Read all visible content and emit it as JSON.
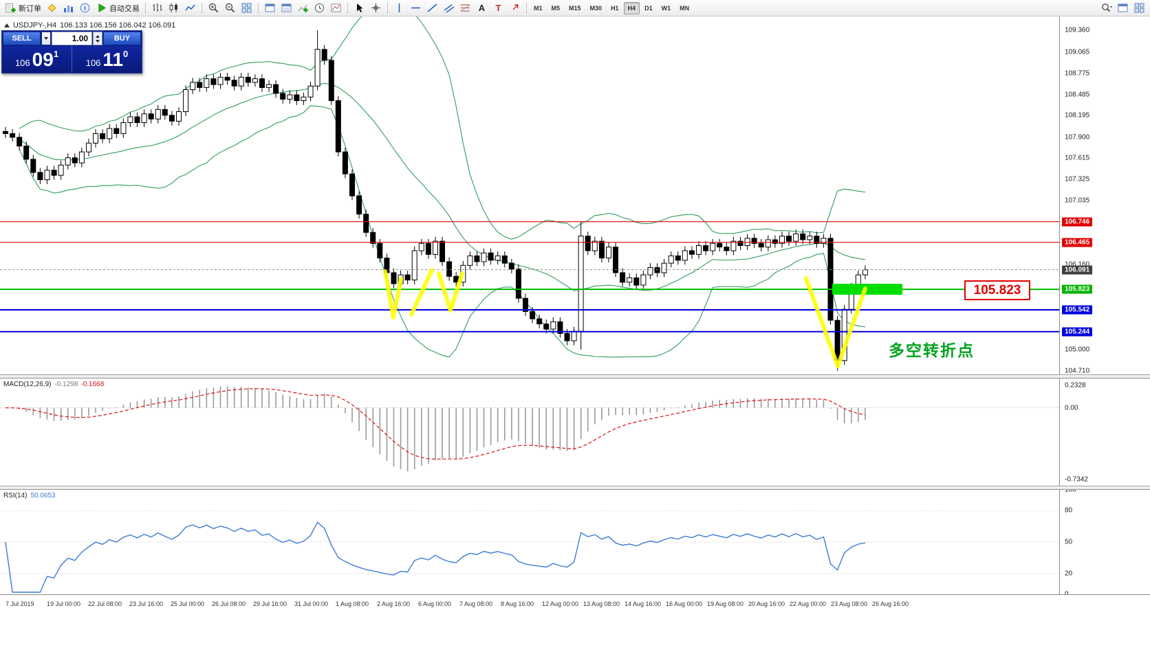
{
  "toolbar": {
    "items": [
      {
        "name": "new-order",
        "icon": "neworder",
        "label": "新订单"
      },
      {
        "name": "favorites",
        "icon": "diamond"
      },
      {
        "name": "charts-profile",
        "icon": "profiles"
      },
      {
        "name": "data-window",
        "icon": "info"
      },
      {
        "name": "autotrading",
        "icon": "play",
        "label": "自动交易"
      },
      {
        "sep": true
      },
      {
        "name": "bars-chart",
        "icon": "bars"
      },
      {
        "name": "candle-chart",
        "icon": "candles"
      },
      {
        "name": "line-chart",
        "icon": "linechart"
      },
      {
        "sep": true
      },
      {
        "name": "zoom-in",
        "icon": "zoomin"
      },
      {
        "name": "zoom-out",
        "icon": "zoomout"
      },
      {
        "name": "tile-windows",
        "icon": "tile"
      },
      {
        "sep": true
      },
      {
        "name": "new-chart",
        "icon": "window"
      },
      {
        "name": "chart-list",
        "icon": "windowlist"
      },
      {
        "name": "indicators",
        "icon": "indicator"
      },
      {
        "name": "periods",
        "icon": "clock"
      },
      {
        "name": "templates",
        "icon": "template"
      },
      {
        "sep": true
      },
      {
        "name": "cursor",
        "icon": "cursor"
      },
      {
        "name": "crosshair",
        "icon": "crosshair"
      },
      {
        "sep": true
      },
      {
        "name": "vertical-line",
        "icon": "vline"
      },
      {
        "name": "horizontal-line",
        "icon": "hline"
      },
      {
        "name": "trendline",
        "icon": "tline"
      },
      {
        "name": "equidistant-channel",
        "icon": "channel"
      },
      {
        "name": "fibonacci",
        "icon": "fibo"
      },
      {
        "name": "text",
        "icon": "textA"
      },
      {
        "name": "text-label",
        "icon": "labelT"
      },
      {
        "name": "arrow-objects",
        "icon": "arrowobj"
      },
      {
        "sep": true
      }
    ],
    "timeframes": [
      "M1",
      "M5",
      "M15",
      "M30",
      "H1",
      "H4",
      "D1",
      "W1",
      "MN"
    ],
    "active_timeframe": "H4",
    "right_items": [
      {
        "name": "search-symbol",
        "icon": "search"
      },
      {
        "name": "restore-window",
        "icon": "window"
      },
      {
        "name": "arrange-windows",
        "icon": "tile"
      }
    ]
  },
  "trade_panel": {
    "sell_label": "SELL",
    "buy_label": "BUY",
    "volume": "1.00",
    "sell_price": {
      "small": "106",
      "big": "09",
      "sup": "1"
    },
    "buy_price": {
      "small": "106",
      "big": "11",
      "sup": "0"
    }
  },
  "header": {
    "symbol": "USDJPY-,H4",
    "ohlc": "106.133 106.156 106.042 106.091"
  },
  "chart_data": {
    "type": "candlestick",
    "symbol": "USDJPY",
    "timeframe": "H4",
    "ohlc_current": {
      "open": "106.133",
      "high": "106.156",
      "low": "106.042",
      "close": "106.091"
    },
    "ylim": [
      104.66,
      109.55
    ],
    "first_open": 107.98,
    "closes": [
      107.95,
      107.9,
      107.78,
      107.6,
      107.42,
      107.32,
      107.45,
      107.38,
      107.52,
      107.62,
      107.55,
      107.7,
      107.82,
      107.95,
      107.88,
      108.02,
      107.95,
      108.1,
      108.18,
      108.1,
      108.22,
      108.15,
      108.28,
      108.2,
      108.12,
      108.25,
      108.55,
      108.65,
      108.58,
      108.7,
      108.62,
      108.72,
      108.68,
      108.6,
      108.72,
      108.65,
      108.7,
      108.58,
      108.62,
      108.5,
      108.42,
      108.48,
      108.4,
      108.45,
      108.6,
      109.1,
      108.95,
      108.4,
      107.7,
      107.4,
      107.1,
      106.85,
      106.6,
      106.45,
      106.25,
      106.05,
      105.9,
      106.02,
      105.95,
      106.35,
      106.45,
      106.3,
      106.48,
      106.2,
      106.0,
      105.92,
      106.15,
      106.28,
      106.2,
      106.32,
      106.22,
      106.28,
      106.18,
      106.1,
      105.7,
      105.52,
      105.42,
      105.35,
      105.28,
      105.38,
      105.22,
      105.12,
      105.25,
      106.55,
      106.35,
      106.48,
      106.25,
      106.4,
      106.05,
      105.92,
      105.98,
      105.88,
      106.02,
      106.12,
      106.05,
      106.18,
      106.28,
      106.22,
      106.35,
      106.3,
      106.42,
      106.35,
      106.45,
      106.4,
      106.35,
      106.48,
      106.42,
      106.52,
      106.45,
      106.4,
      106.5,
      106.45,
      106.55,
      106.48,
      106.58,
      106.5,
      106.55,
      106.45,
      106.52,
      105.4,
      104.85,
      105.55,
      105.85,
      106.02,
      106.09
    ],
    "wick_overrides": {
      "45": {
        "h": 109.36
      },
      "83": {
        "h": 106.75,
        "l": 105.0
      },
      "120": {
        "l": 104.71
      }
    },
    "bollinger": {
      "period": 20,
      "deviation": 2
    },
    "hlines": [
      {
        "value": 106.746,
        "color": "#e00000",
        "width": 1.2
      },
      {
        "value": 106.465,
        "color": "#e00000",
        "width": 1.2
      },
      {
        "value": 105.823,
        "color": "#00bb00",
        "width": 2
      },
      {
        "value": 105.542,
        "color": "#0000e0",
        "width": 2
      },
      {
        "value": 105.244,
        "color": "#0000e0",
        "width": 2
      },
      {
        "value": 106.091,
        "color": "#909090",
        "width": 1,
        "dash": true
      }
    ],
    "price_axis_labels": [
      {
        "text": "109.360",
        "value": 109.36
      },
      {
        "text": "109.065",
        "value": 109.065
      },
      {
        "text": "108.775",
        "value": 108.775
      },
      {
        "text": "108.485",
        "value": 108.485
      },
      {
        "text": "108.195",
        "value": 108.195
      },
      {
        "text": "107.900",
        "value": 107.9
      },
      {
        "text": "107.615",
        "value": 107.615
      },
      {
        "text": "107.325",
        "value": 107.325
      },
      {
        "text": "107.035",
        "value": 107.035
      },
      {
        "text": "106.746",
        "value": 106.746,
        "bg": "#e00000"
      },
      {
        "text": "106.465",
        "value": 106.465,
        "bg": "#e00000"
      },
      {
        "text": "106.160",
        "value": 106.16
      },
      {
        "text": "106.091",
        "value": 106.091,
        "bg": "#3f3f3f"
      },
      {
        "text": "105.823",
        "value": 105.823,
        "bg": "#00b400"
      },
      {
        "text": "105.542",
        "value": 105.542,
        "bg": "#0000e0"
      },
      {
        "text": "105.244",
        "value": 105.244,
        "bg": "#0000e0"
      },
      {
        "text": "105.000",
        "value": 105.0
      },
      {
        "text": "104.710",
        "value": 104.71
      }
    ],
    "macd": {
      "title": "MACD(12,26,9)",
      "value_main": "-0.1298",
      "value_signal": "-0.1668",
      "fast": 12,
      "slow": 26,
      "signal": 9,
      "ylim": [
        -0.8,
        0.3
      ],
      "axis_labels": [
        {
          "text": "0.2328",
          "value": 0.2328
        },
        {
          "text": "0.00",
          "value": 0
        },
        {
          "text": "-0.7342",
          "value": -0.7342
        }
      ]
    },
    "rsi": {
      "title": "RSI(14)",
      "value": "50.0653",
      "period": 14,
      "ylim": [
        0,
        100
      ],
      "levels": [
        80,
        50,
        20
      ],
      "axis_labels": [
        {
          "text": "100",
          "value": 100
        },
        {
          "text": "80",
          "value": 80
        },
        {
          "text": "50",
          "value": 50
        },
        {
          "text": "20",
          "value": 20
        },
        {
          "text": "0",
          "value": 0
        }
      ]
    },
    "time_labels": [
      "7 Jul 2019",
      "19 Jul 00:00",
      "22 Jul 08:00",
      "23 Jul 16:00",
      "25 Jul 00:00",
      "26 Jul 08:00",
      "29 Jul 16:00",
      "31 Jul 00:00",
      "1 Aug 08:00",
      "2 Aug 16:00",
      "6 Aug 00:00",
      "7 Aug 08:00",
      "8 Aug 16:00",
      "12 Aug 00:00",
      "13 Aug 08:00",
      "14 Aug 16:00",
      "16 Aug 00:00",
      "19 Aug 08:00",
      "20 Aug 16:00",
      "22 Aug 00:00",
      "23 Aug 08:00",
      "26 Aug 16:00"
    ],
    "annotations": {
      "yellow_polylines": [
        [
          [
            560,
            371
          ],
          [
            572,
            438
          ],
          [
            583,
            382
          ]
        ],
        [
          [
            598,
            434
          ],
          [
            628,
            369
          ]
        ],
        [
          [
            638,
            374
          ],
          [
            655,
            428
          ],
          [
            672,
            374
          ]
        ],
        [
          [
            1172,
            381
          ],
          [
            1218,
            509
          ],
          [
            1258,
            396
          ]
        ]
      ],
      "green_rect": {
        "x": 1210,
        "y": 389,
        "w": 102,
        "h": 16
      },
      "price_label": {
        "text": "105.823"
      },
      "note": {
        "text": "多空转折点"
      }
    },
    "colors": {
      "bollinger": "#2e9e5b",
      "bull": "#ffffff",
      "bear": "#000000",
      "wick": "#000000",
      "macd_hist": "#9a9a9a",
      "macd_signal": "#e01010",
      "rsi_line": "#3a7bd5",
      "yellow": "#ffff00",
      "green_zone": "#00dd00"
    }
  }
}
